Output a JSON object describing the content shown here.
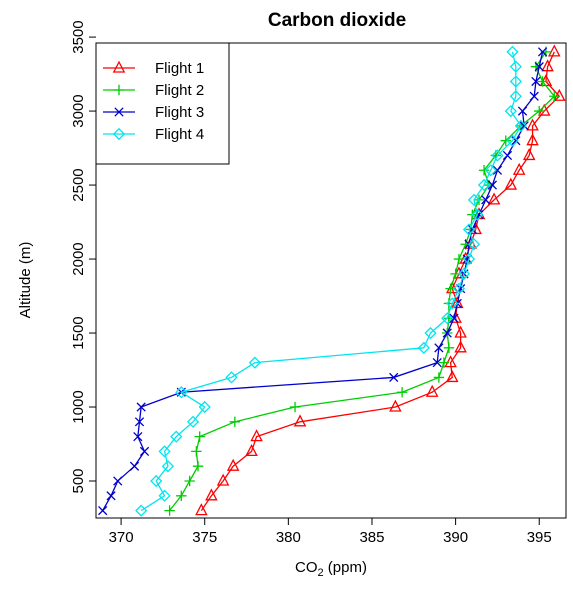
{
  "chart_data": {
    "type": "line",
    "title": "Carbon dioxide",
    "xlabel": {
      "main": "CO",
      "sub": "2",
      "tail": " (ppm)"
    },
    "ylabel": "Altitude  (m)",
    "xlim": [
      368.5,
      396.6
    ],
    "ylim": [
      250,
      3460
    ],
    "x_ticks": [
      370,
      375,
      380,
      385,
      390,
      395
    ],
    "y_ticks": [
      500,
      1000,
      1500,
      2000,
      2500,
      3000,
      3500
    ],
    "grid": false,
    "legend_position": "top-left",
    "series": [
      {
        "name": "Flight 1",
        "color": "#ff0000",
        "marker": "triangle",
        "points": [
          [
            374.8,
            300
          ],
          [
            375.4,
            400
          ],
          [
            376.1,
            500
          ],
          [
            376.7,
            600
          ],
          [
            377.8,
            700
          ],
          [
            378.1,
            800
          ],
          [
            380.7,
            900
          ],
          [
            386.4,
            1000
          ],
          [
            388.6,
            1100
          ],
          [
            389.8,
            1200
          ],
          [
            389.7,
            1300
          ],
          [
            390.3,
            1400
          ],
          [
            390.3,
            1500
          ],
          [
            390.0,
            1600
          ],
          [
            390.1,
            1700
          ],
          [
            389.8,
            1800
          ],
          [
            390.2,
            1900
          ],
          [
            390.6,
            2000
          ],
          [
            390.9,
            2100
          ],
          [
            391.2,
            2200
          ],
          [
            391.4,
            2300
          ],
          [
            392.3,
            2400
          ],
          [
            393.3,
            2500
          ],
          [
            393.8,
            2600
          ],
          [
            394.4,
            2700
          ],
          [
            394.6,
            2800
          ],
          [
            394.6,
            2900
          ],
          [
            395.3,
            3000
          ],
          [
            396.2,
            3100
          ],
          [
            395.4,
            3200
          ],
          [
            395.5,
            3300
          ],
          [
            395.9,
            3400
          ]
        ]
      },
      {
        "name": "Flight 2",
        "color": "#00cd00",
        "marker": "plus",
        "points": [
          [
            372.9,
            300
          ],
          [
            373.6,
            400
          ],
          [
            374.1,
            500
          ],
          [
            374.6,
            600
          ],
          [
            374.5,
            700
          ],
          [
            374.7,
            800
          ],
          [
            376.8,
            900
          ],
          [
            380.4,
            1000
          ],
          [
            386.8,
            1100
          ],
          [
            389.0,
            1200
          ],
          [
            389.3,
            1300
          ],
          [
            389.6,
            1400
          ],
          [
            389.5,
            1500
          ],
          [
            389.6,
            1600
          ],
          [
            389.6,
            1700
          ],
          [
            389.7,
            1800
          ],
          [
            390.0,
            1900
          ],
          [
            390.2,
            2000
          ],
          [
            390.6,
            2100
          ],
          [
            390.9,
            2200
          ],
          [
            391.0,
            2300
          ],
          [
            391.4,
            2400
          ],
          [
            392.0,
            2500
          ],
          [
            391.7,
            2600
          ],
          [
            392.4,
            2700
          ],
          [
            393.0,
            2800
          ],
          [
            393.9,
            2900
          ],
          [
            395.0,
            3000
          ],
          [
            395.9,
            3100
          ],
          [
            395.2,
            3200
          ],
          [
            394.8,
            3300
          ],
          [
            395.4,
            3400
          ]
        ]
      },
      {
        "name": "Flight 3",
        "color": "#0000cd",
        "marker": "cross",
        "points": [
          [
            368.9,
            300
          ],
          [
            369.4,
            400
          ],
          [
            369.8,
            500
          ],
          [
            370.8,
            600
          ],
          [
            371.4,
            700
          ],
          [
            371.0,
            800
          ],
          [
            371.1,
            900
          ],
          [
            371.2,
            1000
          ],
          [
            373.6,
            1100
          ],
          [
            386.3,
            1200
          ],
          [
            388.9,
            1300
          ],
          [
            389.0,
            1400
          ],
          [
            389.5,
            1500
          ],
          [
            389.9,
            1600
          ],
          [
            390.1,
            1700
          ],
          [
            390.3,
            1800
          ],
          [
            390.5,
            1900
          ],
          [
            390.7,
            2000
          ],
          [
            390.8,
            2100
          ],
          [
            391.0,
            2200
          ],
          [
            391.4,
            2300
          ],
          [
            391.8,
            2400
          ],
          [
            392.2,
            2500
          ],
          [
            392.5,
            2600
          ],
          [
            393.1,
            2700
          ],
          [
            393.6,
            2800
          ],
          [
            394.1,
            2900
          ],
          [
            394.0,
            3000
          ],
          [
            394.7,
            3100
          ],
          [
            394.8,
            3200
          ],
          [
            395.0,
            3300
          ],
          [
            395.2,
            3400
          ]
        ]
      },
      {
        "name": "Flight 4",
        "color": "#00e5ee",
        "marker": "diamond",
        "points": [
          [
            371.2,
            300
          ],
          [
            372.6,
            400
          ],
          [
            372.1,
            500
          ],
          [
            372.8,
            600
          ],
          [
            372.6,
            700
          ],
          [
            373.3,
            800
          ],
          [
            374.3,
            900
          ],
          [
            375.0,
            1000
          ],
          [
            373.6,
            1100
          ],
          [
            376.6,
            1200
          ],
          [
            378.0,
            1300
          ],
          [
            388.1,
            1400
          ],
          [
            388.5,
            1500
          ],
          [
            389.5,
            1600
          ],
          [
            389.8,
            1700
          ],
          [
            390.2,
            1800
          ],
          [
            390.5,
            1900
          ],
          [
            390.8,
            2000
          ],
          [
            391.1,
            2100
          ],
          [
            390.8,
            2200
          ],
          [
            391.3,
            2300
          ],
          [
            391.1,
            2400
          ],
          [
            391.7,
            2500
          ],
          [
            392.1,
            2600
          ],
          [
            392.5,
            2700
          ],
          [
            393.4,
            2800
          ],
          [
            393.9,
            2900
          ],
          [
            393.3,
            3000
          ],
          [
            393.6,
            3100
          ],
          [
            393.6,
            3200
          ],
          [
            393.6,
            3300
          ],
          [
            393.4,
            3400
          ]
        ]
      }
    ]
  }
}
